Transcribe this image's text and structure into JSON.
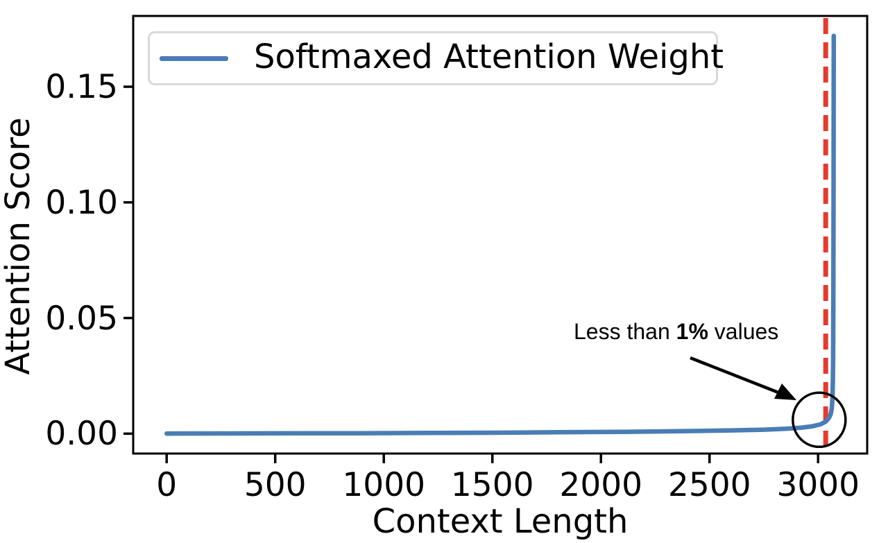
{
  "figure": {
    "background": "#ffffff",
    "text_color": "#000000"
  },
  "chart_data": {
    "type": "line",
    "title": "",
    "xlabel": "Context Length",
    "ylabel": "Attention Score",
    "grid": false,
    "xlim": [
      -154,
      3226
    ],
    "ylim": [
      -0.0086,
      0.1806
    ],
    "x_ticks": [
      0,
      500,
      1000,
      1500,
      2000,
      2500,
      3000
    ],
    "y_ticks": [
      {
        "label": "0.00",
        "value": 0.0
      },
      {
        "label": "0.05",
        "value": 0.05
      },
      {
        "label": "0.10",
        "value": 0.1
      },
      {
        "label": "0.15",
        "value": 0.15
      }
    ],
    "legend": {
      "position": "upper left",
      "entries": [
        {
          "label": "Softmaxed Attention Weight",
          "color": "#4a7db5"
        }
      ]
    },
    "series": [
      {
        "name": "Softmaxed Attention Weight",
        "color": "#4a7db5",
        "linewidth": 6.5,
        "points": [
          [
            0,
            5e-05
          ],
          [
            300,
            0.0001
          ],
          [
            600,
            0.00015
          ],
          [
            900,
            0.0002
          ],
          [
            1200,
            0.0003
          ],
          [
            1500,
            0.0004
          ],
          [
            1800,
            0.0006
          ],
          [
            2100,
            0.0008
          ],
          [
            2400,
            0.0011
          ],
          [
            2600,
            0.0014
          ],
          [
            2750,
            0.0017
          ],
          [
            2850,
            0.0021
          ],
          [
            2925,
            0.0026
          ],
          [
            2975,
            0.0032
          ],
          [
            3010,
            0.004
          ],
          [
            3035,
            0.0052
          ],
          [
            3050,
            0.0068
          ],
          [
            3058,
            0.0085
          ],
          [
            3063,
            0.011
          ],
          [
            3066,
            0.015
          ],
          [
            3068,
            0.022
          ],
          [
            3069,
            0.032
          ],
          [
            3070,
            0.055
          ],
          [
            3071,
            0.1
          ],
          [
            3072,
            0.172
          ]
        ]
      }
    ],
    "vline": {
      "x": 3035,
      "color": "#e8392e",
      "style": "dashed",
      "linewidth": 7
    },
    "annotation": {
      "full_text": "Less than 1% values",
      "text_prefix": "Less than ",
      "text_bold": "1%",
      "text_suffix": " values",
      "circle": {
        "x": 3005,
        "y": 0.006,
        "color": "#000000"
      },
      "arrow_color": "#000000"
    }
  }
}
